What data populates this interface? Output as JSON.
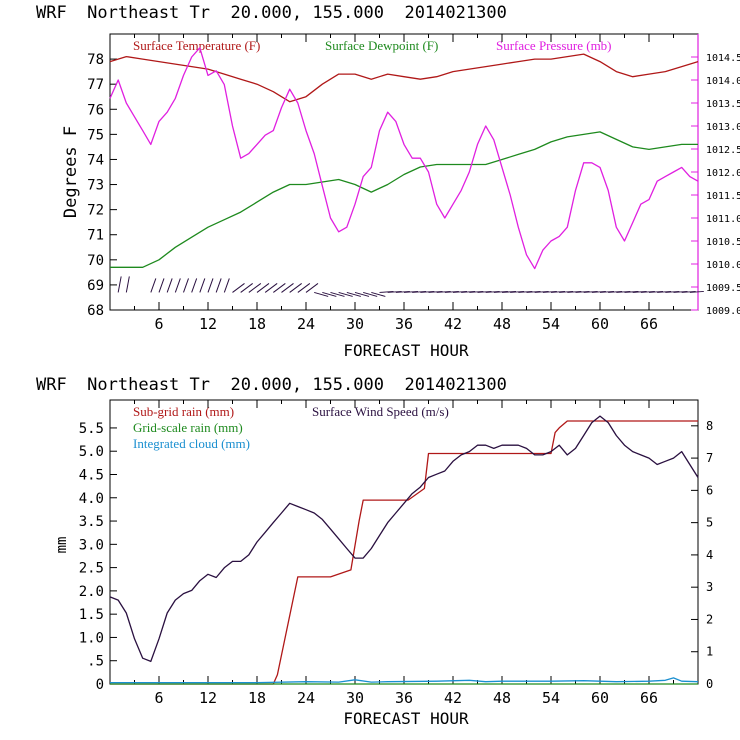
{
  "panels": [
    {
      "id": "top",
      "header": "WRF  Northeast Tr  20.000, 155.000  2014021300",
      "xlabel": "FORECAST HOUR",
      "ylabel_left": "Degrees F",
      "ylabel_right": "",
      "x_ticks": [
        "6",
        "12",
        "18",
        "24",
        "30",
        "36",
        "42",
        "48",
        "54",
        "60",
        "66"
      ],
      "left_ticks": [
        "68",
        "69",
        "70",
        "71",
        "72",
        "73",
        "74",
        "75",
        "76",
        "77",
        "78"
      ],
      "right_ticks": [
        "1009.0",
        "1009.5",
        "1010.0",
        "1010.5",
        "1011.0",
        "1011.5",
        "1012.0",
        "1012.5",
        "1013.0",
        "1013.5",
        "1014.0",
        "1014.5"
      ],
      "legend": [
        {
          "label": "Surface Temperature (F)",
          "color": "#b01818"
        },
        {
          "label": "Surface Dewpoint (F)",
          "color": "#1e8a1e"
        },
        {
          "label": "Surface Pressure (mb)",
          "color": "#e020e0"
        }
      ]
    },
    {
      "id": "bottom",
      "header": "WRF  Northeast Tr  20.000, 155.000  2014021300",
      "xlabel": "FORECAST HOUR",
      "ylabel_left": "mm",
      "x_ticks": [
        "6",
        "12",
        "18",
        "24",
        "30",
        "36",
        "42",
        "48",
        "54",
        "60",
        "66"
      ],
      "left_ticks": [
        "0",
        ".5",
        "1.0",
        "1.5",
        "2.0",
        "2.5",
        "3.0",
        "3.5",
        "4.0",
        "4.5",
        "5.0",
        "5.5"
      ],
      "right_ticks": [
        "0",
        "1",
        "2",
        "3",
        "4",
        "5",
        "6",
        "7",
        "8"
      ],
      "legend": [
        {
          "label": "Sub-grid rain (mm)",
          "color": "#b01818"
        },
        {
          "label": "Grid-scale rain (mm)",
          "color": "#1e8a1e"
        },
        {
          "label": "Integrated cloud (mm)",
          "color": "#1a8fd0"
        },
        {
          "label": "Surface Wind Speed (m/s)",
          "color": "#2a1040"
        }
      ]
    }
  ],
  "chart_data": [
    {
      "type": "line",
      "title": "WRF  Northeast Tr  20.000, 155.000  2014021300",
      "xlabel": "FORECAST HOUR",
      "ylabel": "Degrees F",
      "xlim": [
        0,
        72
      ],
      "ylim": [
        68,
        79
      ],
      "y2lim": [
        1009,
        1015
      ],
      "grid": false,
      "legend_position": "top",
      "series": [
        {
          "name": "Surface Temperature (F)",
          "axis": "left",
          "color": "#b01818",
          "x": [
            0,
            2,
            4,
            6,
            8,
            10,
            12,
            14,
            16,
            18,
            20,
            22,
            24,
            26,
            28,
            30,
            32,
            34,
            36,
            38,
            40,
            42,
            44,
            46,
            48,
            50,
            52,
            54,
            56,
            58,
            60,
            62,
            64,
            66,
            68,
            70,
            72
          ],
          "y": [
            77.9,
            78.1,
            78.0,
            77.9,
            77.8,
            77.7,
            77.6,
            77.4,
            77.2,
            77.0,
            76.7,
            76.3,
            76.5,
            77.0,
            77.4,
            77.4,
            77.2,
            77.4,
            77.3,
            77.2,
            77.3,
            77.5,
            77.6,
            77.7,
            77.8,
            77.9,
            78.0,
            78.0,
            78.1,
            78.2,
            77.9,
            77.5,
            77.3,
            77.4,
            77.5,
            77.7,
            77.9
          ]
        },
        {
          "name": "Surface Dewpoint (F)",
          "axis": "left",
          "color": "#1e8a1e",
          "x": [
            0,
            2,
            4,
            6,
            8,
            10,
            12,
            14,
            16,
            18,
            20,
            22,
            24,
            26,
            28,
            30,
            32,
            34,
            36,
            38,
            40,
            42,
            44,
            46,
            48,
            50,
            52,
            54,
            56,
            58,
            60,
            62,
            64,
            66,
            68,
            70,
            72
          ],
          "y": [
            69.7,
            69.7,
            69.7,
            70.0,
            70.5,
            70.9,
            71.3,
            71.6,
            71.9,
            72.3,
            72.7,
            73.0,
            73.0,
            73.1,
            73.2,
            73.0,
            72.7,
            73.0,
            73.4,
            73.7,
            73.8,
            73.8,
            73.8,
            73.8,
            74.0,
            74.2,
            74.4,
            74.7,
            74.9,
            75.0,
            75.1,
            74.8,
            74.5,
            74.4,
            74.5,
            74.6,
            74.6
          ]
        },
        {
          "name": "Surface Pressure (mb)",
          "axis": "right",
          "color": "#e020e0",
          "x": [
            0,
            1,
            2,
            3,
            4,
            5,
            6,
            7,
            8,
            9,
            10,
            11,
            12,
            13,
            14,
            15,
            16,
            17,
            18,
            19,
            20,
            21,
            22,
            23,
            24,
            25,
            26,
            27,
            28,
            29,
            30,
            31,
            32,
            33,
            34,
            35,
            36,
            37,
            38,
            39,
            40,
            41,
            42,
            43,
            44,
            45,
            46,
            47,
            48,
            49,
            50,
            51,
            52,
            53,
            54,
            55,
            56,
            57,
            58,
            59,
            60,
            61,
            62,
            63,
            64,
            65,
            66,
            67,
            68,
            69,
            70,
            71,
            72
          ],
          "y": [
            1013.6,
            1014.0,
            1013.5,
            1013.2,
            1012.9,
            1012.6,
            1013.1,
            1013.3,
            1013.6,
            1014.1,
            1014.5,
            1014.7,
            1014.1,
            1014.2,
            1013.9,
            1013.0,
            1012.3,
            1012.4,
            1012.6,
            1012.8,
            1012.9,
            1013.4,
            1013.8,
            1013.5,
            1012.9,
            1012.4,
            1011.7,
            1011.0,
            1010.7,
            1010.8,
            1011.3,
            1011.9,
            1012.1,
            1012.9,
            1013.3,
            1013.1,
            1012.6,
            1012.3,
            1012.3,
            1012.0,
            1011.3,
            1011.0,
            1011.3,
            1011.6,
            1012.0,
            1012.6,
            1013.0,
            1012.7,
            1012.1,
            1011.5,
            1010.8,
            1010.2,
            1009.9,
            1010.3,
            1010.5,
            1010.6,
            1010.8,
            1011.6,
            1012.2,
            1012.2,
            1012.1,
            1011.6,
            1010.8,
            1010.5,
            1010.9,
            1011.3,
            1011.4,
            1011.8,
            1011.9,
            1012.0,
            1012.1,
            1011.9,
            1011.8
          ]
        }
      ],
      "wind_barbs": {
        "row_value": 68.7,
        "hours": [
          1,
          2,
          5,
          6,
          7,
          8,
          9,
          10,
          11,
          12,
          13,
          14,
          15,
          16,
          17,
          18,
          19,
          20,
          21,
          22,
          23,
          24,
          25,
          26,
          27,
          28,
          29,
          30,
          31,
          32,
          33,
          34,
          35,
          36,
          37,
          38,
          39,
          40,
          41,
          42,
          43,
          44,
          45,
          46,
          47,
          48,
          49,
          50,
          51,
          52,
          53,
          54,
          55,
          56,
          57,
          58,
          59,
          60,
          61,
          62,
          63,
          64,
          65,
          66,
          67,
          68,
          69,
          70,
          71
        ]
      }
    },
    {
      "type": "line",
      "title": "WRF  Northeast Tr  20.000, 155.000  2014021300",
      "xlabel": "FORECAST HOUR",
      "ylabel": "mm",
      "xlim": [
        0,
        72
      ],
      "ylim": [
        0,
        6.1
      ],
      "y2lim": [
        0,
        8.8
      ],
      "grid": false,
      "legend_position": "top-left",
      "series": [
        {
          "name": "Sub-grid rain (mm)",
          "axis": "left",
          "color": "#b01818",
          "x": [
            0,
            20,
            20.5,
            23,
            27,
            29.5,
            30.5,
            31,
            35,
            36.5,
            38.5,
            39,
            48,
            53,
            54,
            54.5,
            55,
            56,
            72
          ],
          "y": [
            0,
            0,
            0.2,
            2.3,
            2.3,
            2.45,
            3.5,
            3.95,
            3.95,
            3.95,
            4.2,
            4.95,
            4.95,
            4.95,
            4.95,
            5.4,
            5.5,
            5.65,
            5.65
          ]
        },
        {
          "name": "Grid-scale rain (mm)",
          "axis": "left",
          "color": "#1e8a1e",
          "x": [
            0,
            72
          ],
          "y": [
            0,
            0
          ]
        },
        {
          "name": "Integrated cloud (mm)",
          "axis": "left",
          "color": "#1a8fd0",
          "x": [
            0,
            6,
            12,
            18,
            24,
            28,
            30,
            32,
            34,
            40,
            44,
            46,
            48,
            54,
            58,
            62,
            66,
            68,
            69,
            70,
            72
          ],
          "y": [
            0.03,
            0.03,
            0.03,
            0.03,
            0.05,
            0.04,
            0.09,
            0.04,
            0.05,
            0.06,
            0.08,
            0.05,
            0.06,
            0.06,
            0.07,
            0.05,
            0.06,
            0.08,
            0.13,
            0.06,
            0.05
          ]
        },
        {
          "name": "Surface Wind Speed (m/s)",
          "axis": "right",
          "color": "#2a1040",
          "x": [
            0,
            1,
            2,
            3,
            4,
            5,
            6,
            7,
            8,
            9,
            10,
            11,
            12,
            13,
            14,
            15,
            16,
            17,
            18,
            19,
            20,
            21,
            22,
            23,
            24,
            25,
            26,
            27,
            28,
            29,
            30,
            31,
            32,
            33,
            34,
            35,
            36,
            37,
            38,
            39,
            40,
            41,
            42,
            43,
            44,
            45,
            46,
            47,
            48,
            49,
            50,
            51,
            52,
            53,
            54,
            55,
            56,
            57,
            58,
            59,
            60,
            61,
            62,
            63,
            64,
            65,
            66,
            67,
            68,
            69,
            70,
            71,
            72
          ],
          "y": [
            2.7,
            2.6,
            2.2,
            1.4,
            0.8,
            0.7,
            1.4,
            2.2,
            2.6,
            2.8,
            2.9,
            3.2,
            3.4,
            3.3,
            3.6,
            3.8,
            3.8,
            4.0,
            4.4,
            4.7,
            5.0,
            5.3,
            5.6,
            5.5,
            5.4,
            5.3,
            5.1,
            4.8,
            4.5,
            4.2,
            3.9,
            3.9,
            4.2,
            4.6,
            5.0,
            5.3,
            5.6,
            5.9,
            6.1,
            6.4,
            6.5,
            6.6,
            6.9,
            7.1,
            7.2,
            7.4,
            7.4,
            7.3,
            7.4,
            7.4,
            7.4,
            7.3,
            7.1,
            7.1,
            7.2,
            7.4,
            7.1,
            7.3,
            7.7,
            8.1,
            8.3,
            8.1,
            7.7,
            7.4,
            7.2,
            7.1,
            7.0,
            6.8,
            6.9,
            7.0,
            7.2,
            6.8,
            6.4
          ]
        }
      ]
    }
  ]
}
